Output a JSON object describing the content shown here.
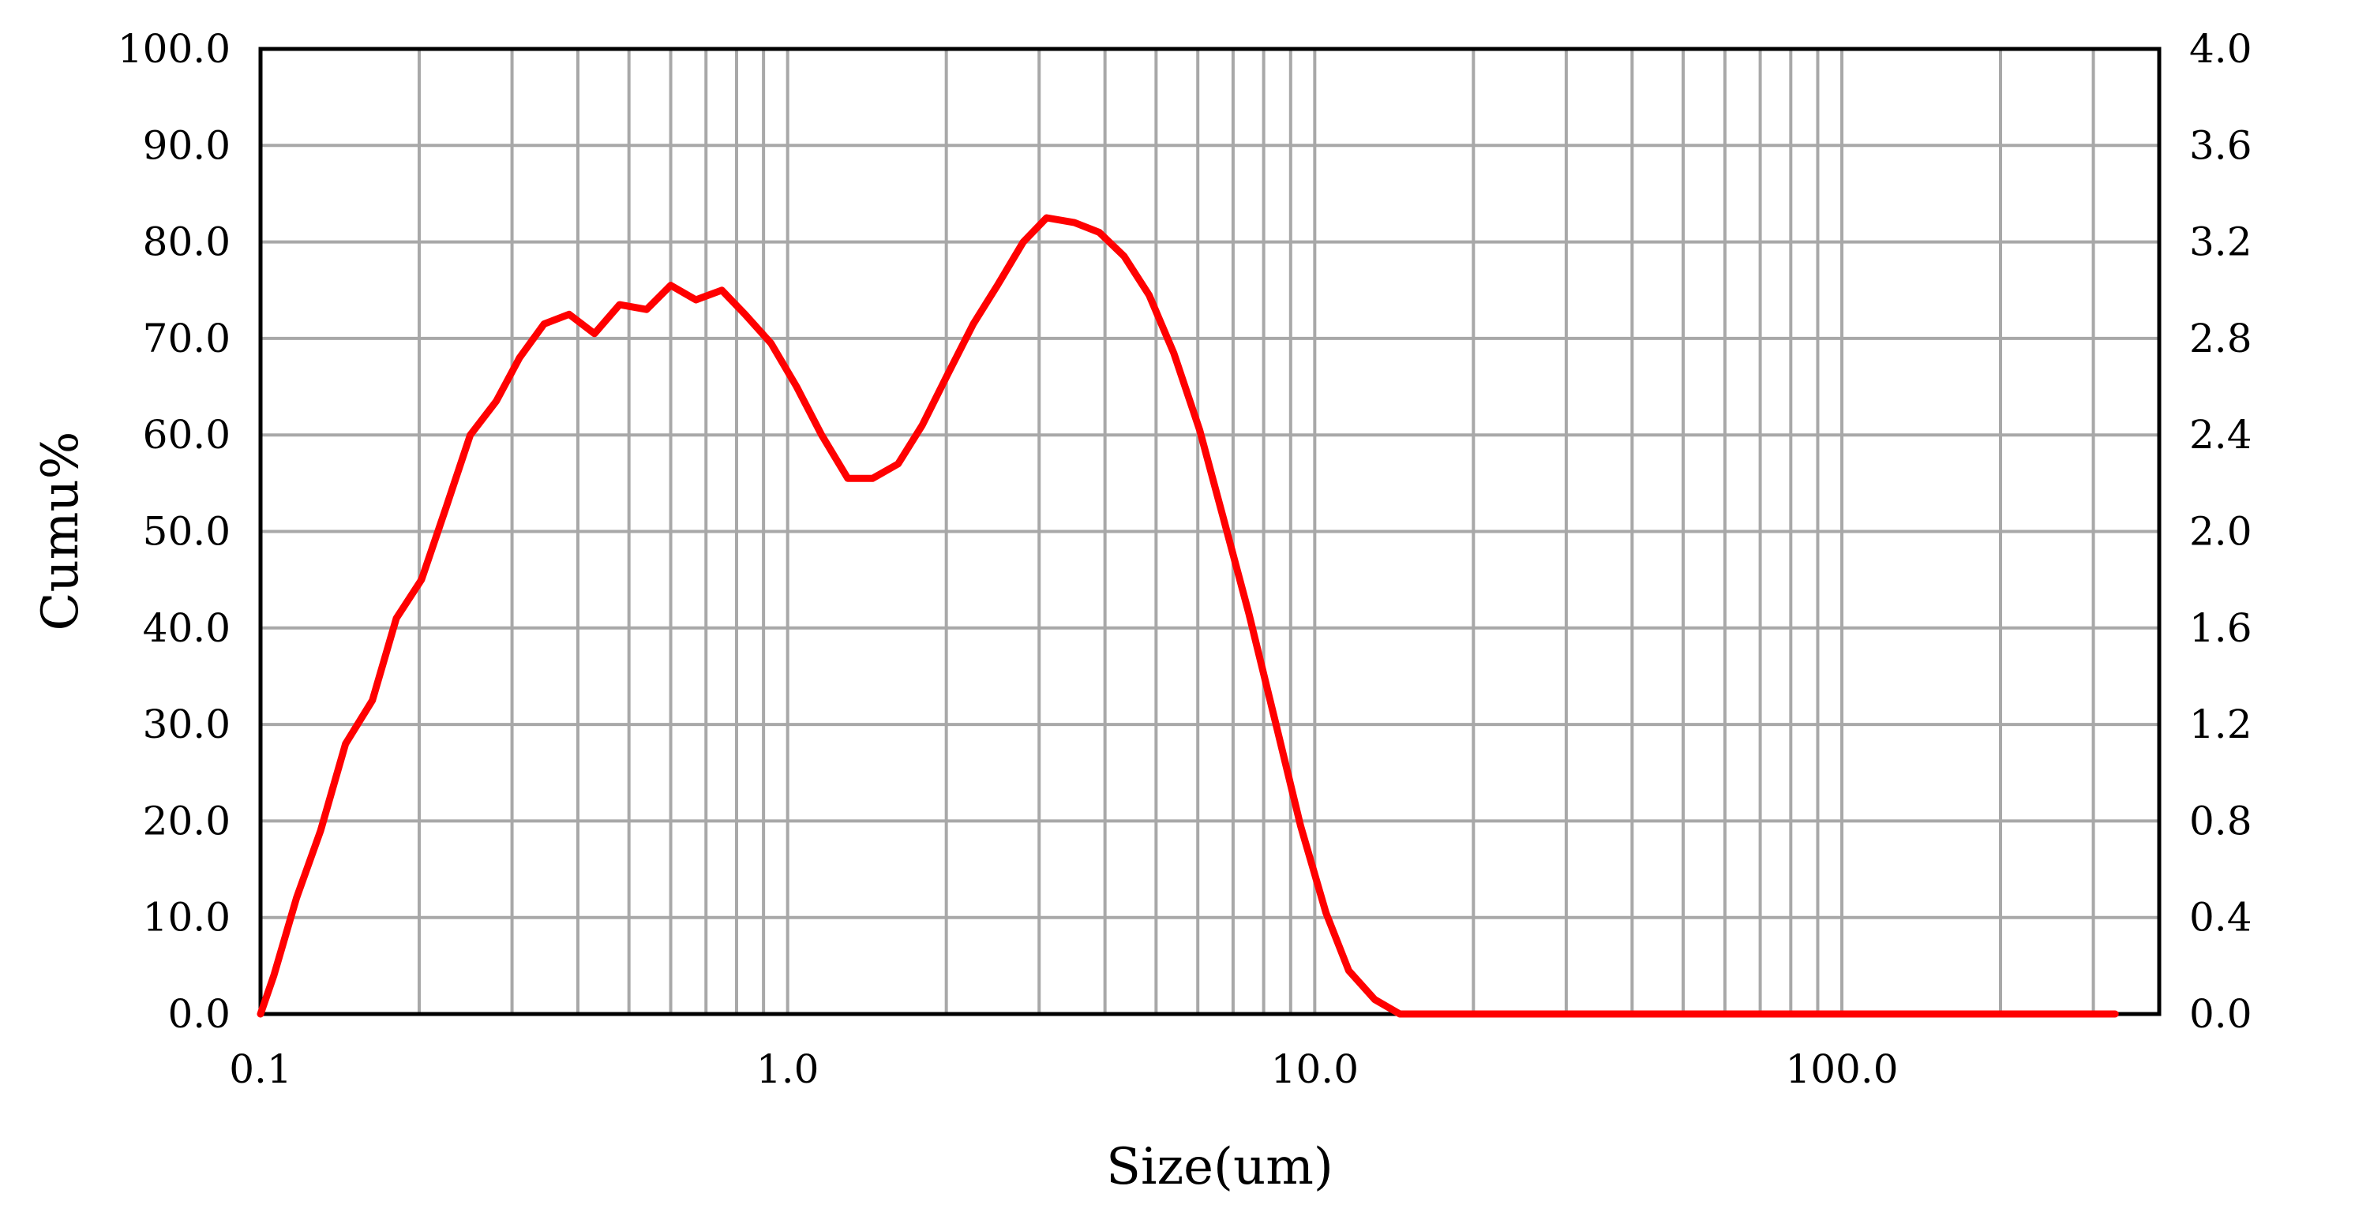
{
  "chart_data": {
    "type": "line",
    "title": "",
    "xlabel": "Size(um)",
    "ylabel": "Cumu%",
    "x_scale": "log",
    "xlim": [
      0.1,
      400
    ],
    "ylim": [
      0,
      100
    ],
    "y2lim": [
      0,
      4.0
    ],
    "grid": true,
    "x_tick_labels": [
      "0.1",
      "1.0",
      "10.0",
      "100.0"
    ],
    "x_tick_values": [
      0.1,
      1,
      10,
      100
    ],
    "y_tick_labels": [
      "0.0",
      "10.0",
      "20.0",
      "30.0",
      "40.0",
      "50.0",
      "60.0",
      "70.0",
      "80.0",
      "90.0",
      "100.0"
    ],
    "y_tick_values": [
      0,
      10,
      20,
      30,
      40,
      50,
      60,
      70,
      80,
      90,
      100
    ],
    "y2_tick_labels": [
      "0.0",
      "0.4",
      "0.8",
      "1.2",
      "1.6",
      "2.0",
      "2.4",
      "2.8",
      "3.2",
      "3.6",
      "4.0"
    ],
    "y2_tick_values": [
      0,
      0.4,
      0.8,
      1.2,
      1.6,
      2.0,
      2.4,
      2.8,
      3.2,
      3.6,
      4.0
    ],
    "series": [
      {
        "color": "#ff0000",
        "x": [
          0.1,
          0.106,
          0.117,
          0.13,
          0.145,
          0.163,
          0.181,
          0.202,
          0.225,
          0.25,
          0.28,
          0.31,
          0.345,
          0.385,
          0.43,
          0.48,
          0.54,
          0.6,
          0.67,
          0.75,
          0.83,
          0.93,
          1.04,
          1.16,
          1.3,
          1.45,
          1.62,
          1.8,
          2.0,
          2.25,
          2.5,
          2.8,
          3.1,
          3.5,
          3.9,
          4.35,
          4.85,
          5.4,
          6.05,
          6.7,
          7.5,
          8.4,
          9.4,
          10.5,
          11.6,
          13.0,
          14.5,
          16.5,
          20,
          30,
          50,
          100,
          200,
          330
        ],
        "values": [
          0.0,
          4.0,
          12.0,
          19.0,
          28.0,
          32.5,
          41.0,
          45.0,
          52.5,
          60.0,
          63.5,
          68.0,
          71.5,
          72.5,
          70.5,
          73.5,
          73.0,
          75.5,
          74.0,
          75.0,
          72.5,
          69.5,
          65.0,
          60.0,
          55.5,
          55.5,
          57.0,
          61.0,
          66.0,
          71.5,
          75.5,
          80.0,
          82.5,
          82.0,
          81.0,
          78.5,
          74.5,
          68.5,
          60.5,
          51.5,
          41.5,
          30.5,
          19.5,
          10.5,
          4.5,
          1.5,
          0.0,
          0.0,
          0.0,
          0.0,
          0.0,
          0.0,
          0.0,
          0.0
        ]
      }
    ]
  }
}
